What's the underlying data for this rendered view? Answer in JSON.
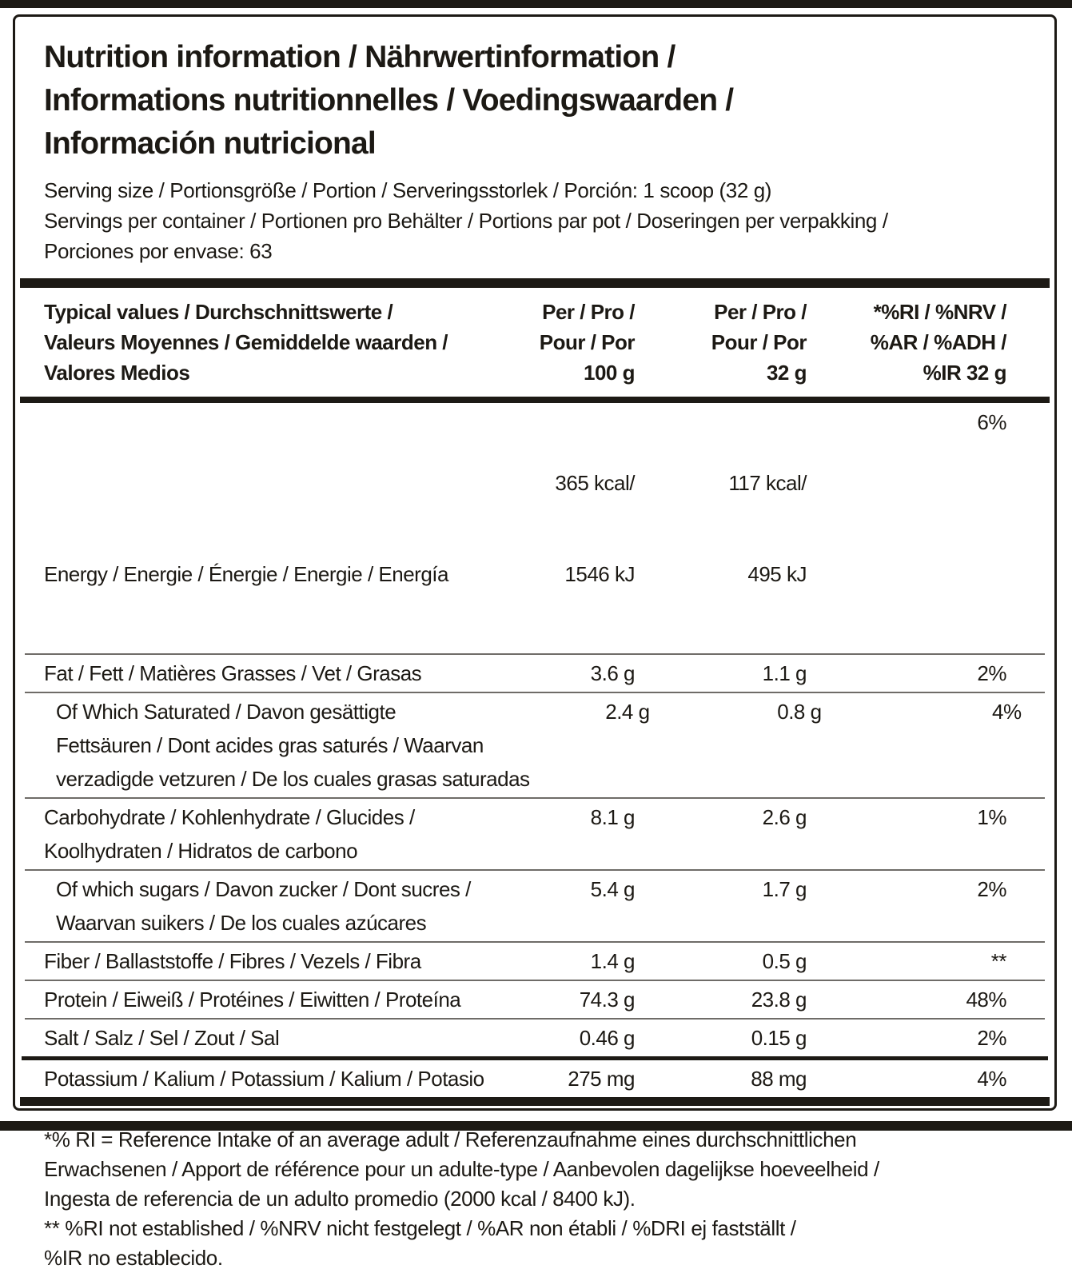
{
  "label": {
    "title": "Nutrition information / Nährwertinformation /\nInformations nutritionnelles / Voedingswaarden /\nInformación nutricional",
    "serving_size": "Serving size / Portionsgröße / Portion / Serveringsstorlek / Porción: 1 scoop (32 g)",
    "servings_per_container": "Servings per container / Portionen pro Behälter / Portions par pot / Doseringen per verpakking /\nPorciones por envase: 63",
    "table": {
      "header": {
        "col1": "Typical values / Durchschnittswerte /\nValeurs Moyennes / Gemiddelde waarden /\nValores Medios",
        "col2": "Per / Pro /\nPour / Por\n100 g",
        "col3": "Per / Pro /\nPour / Por\n32 g",
        "col4": "*%RI / %NRV /\n%AR / %ADH /\n%IR 32 g"
      },
      "energy_row": {
        "label": "Energy / Energie / Énergie / Energie / Energía",
        "per100_kcal": "365 kcal/",
        "per100_kj": "1546 kJ",
        "per32_kcal": "117 kcal/",
        "per32_kj": "495 kJ",
        "ri": "6%"
      },
      "rows": [
        {
          "label": "Fat / Fett / Matières Grasses / Vet / Grasas",
          "per100": "3.6 g",
          "per32": "1.1 g",
          "ri": "2%"
        },
        {
          "label": "Of Which Saturated / Davon gesättigte\nFettsäuren / Dont acides gras saturés / Waarvan\nverzadigde vetzuren / De los cuales grasas saturadas",
          "per100": "2.4 g",
          "per32": "0.8 g",
          "ri": "4%"
        },
        {
          "label": "Carbohydrate / Kohlenhydrate / Glucides /\nKoolhydraten / Hidratos de carbono",
          "per100": "8.1 g",
          "per32": "2.6 g",
          "ri": "1%"
        },
        {
          "label": "Of which sugars / Davon zucker / Dont sucres /\nWaarvan suikers / De los cuales azúcares",
          "per100": "5.4 g",
          "per32": "1.7 g",
          "ri": "2%"
        },
        {
          "label": "Fiber / Ballaststoffe / Fibres / Vezels / Fibra",
          "per100": "1.4 g",
          "per32": "0.5 g",
          "ri": "**"
        },
        {
          "label": "Protein / Eiweiß / Protéines / Eiwitten / Proteína",
          "per100": "74.3 g",
          "per32": "23.8 g",
          "ri": "48%"
        },
        {
          "label": "Salt / Salz / Sel / Zout / Sal",
          "per100": "0.46 g",
          "per32": "0.15 g",
          "ri": "2%"
        }
      ],
      "potassium_row": {
        "label": "Potassium / Kalium / Potassium / Kalium / Potasio",
        "per100": "275 mg",
        "per32": "88 mg",
        "ri": "4%"
      }
    },
    "footnotes": [
      "*% RI = Reference Intake of an average adult / Referenzaufnahme eines durchschnittlichen\nErwachsenen / Apport de référence pour un adulte-type / Aanbevolen dagelijkse hoeveelheid  /\nIngesta de referencia de un adulto promedio (2000 kcal / 8400 kJ).",
      "** %RI not established / %NRV nicht festgelegt / %AR non établi / %DRI ej fastställt /\n%IR no establecido."
    ],
    "colors": {
      "ink": "#1c1914",
      "rule_black": "#1d1a15",
      "divider_gray": "#6f6c68",
      "background": "#ffffff"
    }
  }
}
